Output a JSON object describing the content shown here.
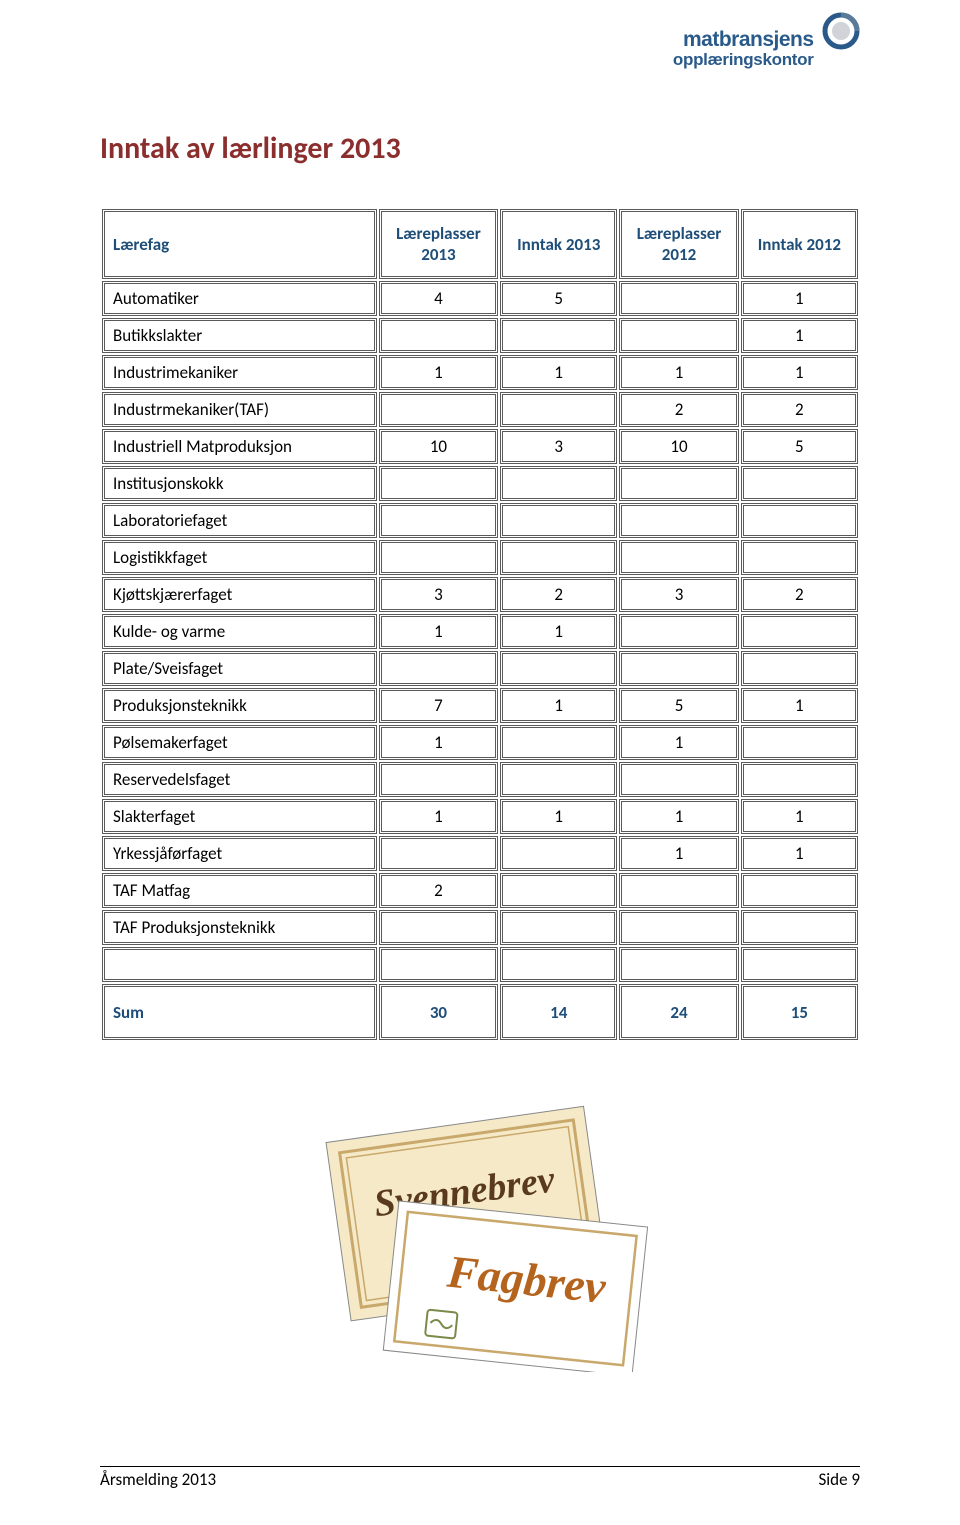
{
  "logo": {
    "line1": "matbransjens",
    "line2": "opplæringskontor",
    "outer_color": "#2a5a8a",
    "inner_color": "#d0d4d8"
  },
  "title": "Inntak av lærlinger 2013",
  "table": {
    "headers": [
      "Lærefag",
      "Læreplasser 2013",
      "Inntak 2013",
      "Læreplasser 2012",
      "Inntak 2012"
    ],
    "rows": [
      {
        "label": "Automatiker",
        "c1": "4",
        "c2": "5",
        "c3": "",
        "c4": "1"
      },
      {
        "label": "Butikkslakter",
        "c1": "",
        "c2": "",
        "c3": "",
        "c4": "1"
      },
      {
        "label": "Industrimekaniker",
        "c1": "1",
        "c2": "1",
        "c3": "1",
        "c4": "1"
      },
      {
        "label": "Industrmekaniker(TAF)",
        "c1": "",
        "c2": "",
        "c3": "2",
        "c4": "2"
      },
      {
        "label": "Industriell Matproduksjon",
        "c1": "10",
        "c2": "3",
        "c3": "10",
        "c4": "5"
      },
      {
        "label": "Institusjonskokk",
        "c1": "",
        "c2": "",
        "c3": "",
        "c4": ""
      },
      {
        "label": "Laboratoriefaget",
        "c1": "",
        "c2": "",
        "c3": "",
        "c4": ""
      },
      {
        "label": "Logistikkfaget",
        "c1": "",
        "c2": "",
        "c3": "",
        "c4": ""
      },
      {
        "label": "Kjøttskjærerfaget",
        "c1": "3",
        "c2": "2",
        "c3": "3",
        "c4": "2"
      },
      {
        "label": "Kulde- og varme",
        "c1": "1",
        "c2": "1",
        "c3": "",
        "c4": ""
      },
      {
        "label": "Plate/Sveisfaget",
        "c1": "",
        "c2": "",
        "c3": "",
        "c4": ""
      },
      {
        "label": "Produksjonsteknikk",
        "c1": "7",
        "c2": "1",
        "c3": "5",
        "c4": "1"
      },
      {
        "label": "Pølsemakerfaget",
        "c1": "1",
        "c2": "",
        "c3": "1",
        "c4": ""
      },
      {
        "label": "Reservedelsfaget",
        "c1": "",
        "c2": "",
        "c3": "",
        "c4": ""
      },
      {
        "label": "Slakterfaget",
        "c1": "1",
        "c2": "1",
        "c3": "1",
        "c4": "1"
      },
      {
        "label": "Yrkessjåførfaget",
        "c1": "",
        "c2": "",
        "c3": "1",
        "c4": "1"
      },
      {
        "label": "TAF Matfag",
        "c1": "2",
        "c2": "",
        "c3": "",
        "c4": ""
      },
      {
        "label": "TAF Produksjonsteknikk",
        "c1": "",
        "c2": "",
        "c3": "",
        "c4": ""
      }
    ],
    "sum": {
      "label": "Sum",
      "c1": "30",
      "c2": "14",
      "c3": "24",
      "c4": "15"
    }
  },
  "certificate": {
    "word1": "Svennebrev",
    "word2": "Fagbrev",
    "bg_color": "#f5e9c8",
    "border_color": "#c9a86b",
    "script_color1": "#5a3a1f",
    "script_color2": "#b5641e"
  },
  "footer": {
    "left": "Årsmelding 2013",
    "right": "Side 9"
  }
}
